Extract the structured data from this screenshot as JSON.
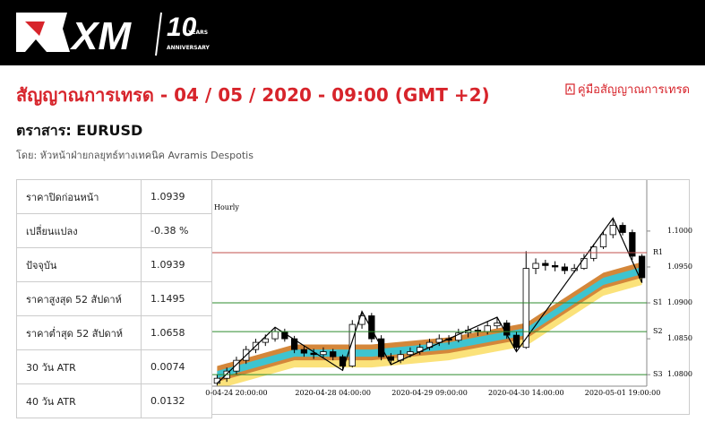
{
  "header": {
    "logo": "XM",
    "badge": "10",
    "badge_top": "YEARS",
    "badge_bottom": "ANNIVERSARY"
  },
  "title": "สัญญาณการเทรด - 04 / 05 / 2020 - 09:00 (GMT +2)",
  "guide_link": "คู่มือสัญญาณการเทรด",
  "instrument": "ตราสาร: EURUSD",
  "author": "โดย: หัวหน้าฝ่ายกลยุทธ์ทางเทคนิค Avramis Despotis",
  "table": {
    "rows": [
      [
        "ราคาปิดก่อนหน้า",
        "1.0939"
      ],
      [
        "เปลี่ยนแปลง",
        "-0.38 %"
      ],
      [
        "ปัจจุบัน",
        "1.0939"
      ],
      [
        "ราคาสูงสุด 52 สัปดาห์",
        "1.1495"
      ],
      [
        "ราคาต่ำสุด 52 สัปดาห์",
        "1.0658"
      ],
      [
        "30 วัน ATR",
        "0.0074"
      ],
      [
        "40 วัน ATR",
        "0.0132"
      ]
    ]
  },
  "chart_data": {
    "type": "candlestick",
    "subtitle": "Hourly",
    "categories": [
      null,
      null,
      "0-04-24 20:00:00",
      null,
      null,
      null,
      null,
      null,
      null,
      null,
      null,
      null,
      "2020-04-28 04:00:00",
      null,
      null,
      null,
      null,
      null,
      null,
      null,
      null,
      null,
      "2020-04-29 09:00:00",
      null,
      null,
      null,
      null,
      null,
      null,
      null,
      null,
      null,
      "2020-04-30 14:00:00",
      null,
      null,
      null,
      null,
      null,
      null,
      null,
      null,
      null,
      "2020-05-01 19:00:00",
      null,
      null
    ],
    "open": [
      1.0788,
      1.0795,
      1.0805,
      1.082,
      1.0835,
      1.0845,
      1.085,
      1.086,
      1.085,
      1.0835,
      1.083,
      1.0828,
      1.0832,
      1.0825,
      1.0812,
      1.087,
      1.0882,
      1.085,
      1.0825,
      1.082,
      1.0828,
      1.0832,
      1.0838,
      1.0845,
      1.085,
      1.0848,
      1.0858,
      1.0862,
      1.086,
      1.0868,
      1.0872,
      1.0855,
      1.0838,
      1.0948,
      1.0955,
      1.0952,
      1.095,
      1.0945,
      1.0948,
      1.0962,
      1.0978,
      1.0995,
      1.1008,
      1.0998,
      1.0965
    ],
    "high": [
      1.08,
      1.081,
      1.0825,
      1.084,
      1.085,
      1.0856,
      1.0866,
      1.0864,
      1.0854,
      1.084,
      1.0836,
      1.0838,
      1.0836,
      1.0828,
      1.0876,
      1.0888,
      1.0886,
      1.0855,
      1.083,
      1.0834,
      1.0838,
      1.0843,
      1.085,
      1.0856,
      1.0855,
      1.0864,
      1.0868,
      1.0866,
      1.0874,
      1.088,
      1.0876,
      1.086,
      1.0972,
      1.0962,
      1.096,
      1.0958,
      1.0955,
      1.0954,
      1.0968,
      1.0982,
      1.1,
      1.1018,
      1.1012,
      1.1002,
      1.0968
    ],
    "low": [
      1.0785,
      1.079,
      1.08,
      1.0815,
      1.083,
      1.084,
      1.0846,
      1.0846,
      1.083,
      1.0825,
      1.0822,
      1.0824,
      1.082,
      1.0806,
      1.081,
      1.0864,
      1.0845,
      1.082,
      1.0814,
      1.0816,
      1.0824,
      1.0828,
      1.0834,
      1.084,
      1.0842,
      1.0845,
      1.0852,
      1.0854,
      1.0856,
      1.0864,
      1.085,
      1.0832,
      1.0836,
      1.094,
      1.0945,
      1.0944,
      1.094,
      1.0942,
      1.0946,
      1.0958,
      1.0975,
      1.099,
      1.0994,
      1.096,
      1.0928
    ],
    "close": [
      1.0795,
      1.0805,
      1.082,
      1.0835,
      1.0845,
      1.085,
      1.086,
      1.085,
      1.0835,
      1.083,
      1.0828,
      1.0832,
      1.0825,
      1.0812,
      1.087,
      1.0882,
      1.085,
      1.0825,
      1.082,
      1.0828,
      1.0832,
      1.0838,
      1.0845,
      1.085,
      1.0848,
      1.0858,
      1.0862,
      1.086,
      1.0868,
      1.0872,
      1.0855,
      1.0838,
      1.0948,
      1.0955,
      1.0952,
      1.095,
      1.0945,
      1.0948,
      1.0962,
      1.0978,
      1.0995,
      1.1008,
      1.0998,
      1.0965,
      1.0935
    ],
    "up_color": "#ffffff",
    "down_color": "#000000",
    "ylim": [
      1.0784,
      1.1071
    ],
    "yticks": [
      {
        "value": 1.1,
        "label": "1.1000"
      },
      {
        "value": 1.095,
        "label": "1.0950"
      },
      {
        "value": 1.09,
        "label": "1.0900"
      },
      {
        "value": 1.085,
        "label": "1.0850"
      },
      {
        "value": 1.08,
        "label": "1.0800"
      }
    ],
    "levels": [
      {
        "label": "R1",
        "value": 1.097,
        "color": "#c0504d"
      },
      {
        "label": "S1",
        "value": 1.09,
        "color": "#2e8b2e"
      },
      {
        "label": "S2",
        "value": 1.086,
        "color": "#2e8b2e"
      },
      {
        "label": "S3",
        "value": 1.08,
        "color": "#2e8b2e"
      }
    ],
    "bands": [
      {
        "color": "#fbe27a",
        "x": [
          0,
          8,
          16,
          24,
          32,
          40,
          44
        ],
        "upper": [
          1.0795,
          1.0825,
          1.0825,
          1.0835,
          1.0855,
          1.0925,
          1.094
        ],
        "lower": [
          1.078,
          1.081,
          1.081,
          1.082,
          1.084,
          1.091,
          1.0925
        ]
      },
      {
        "color": "#d4873a",
        "x": [
          0,
          8,
          16,
          24,
          32,
          40,
          44
        ],
        "upper": [
          1.0812,
          1.0842,
          1.0842,
          1.0852,
          1.0872,
          1.0942,
          1.0957
        ],
        "lower": [
          1.079,
          1.082,
          1.082,
          1.083,
          1.085,
          1.092,
          1.0935
        ]
      },
      {
        "color": "#3ec4d0",
        "x": [
          0,
          8,
          16,
          24,
          32,
          40,
          44
        ],
        "upper": [
          1.0805,
          1.0835,
          1.0835,
          1.0845,
          1.0865,
          1.0935,
          1.095
        ],
        "lower": [
          1.0795,
          1.0825,
          1.0825,
          1.0835,
          1.0855,
          1.0925,
          1.094
        ]
      }
    ],
    "zigzag": {
      "color": "#000000",
      "x": [
        0,
        6,
        13,
        15,
        18,
        29,
        31,
        41,
        44
      ],
      "values": [
        1.0788,
        1.0866,
        1.0806,
        1.0888,
        1.0814,
        1.088,
        1.0832,
        1.1018,
        1.0928
      ]
    }
  }
}
